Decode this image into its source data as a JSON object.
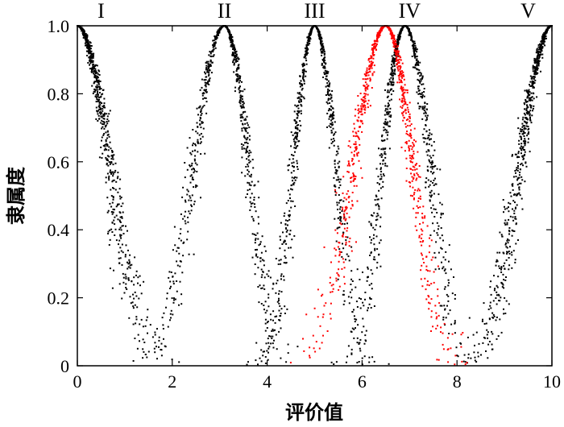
{
  "chart_data": {
    "type": "scatter",
    "title": "",
    "xlabel": "评价值",
    "ylabel": "隶属度",
    "xlim": [
      0,
      10
    ],
    "ylim": [
      0,
      1
    ],
    "x_ticks": [
      "0",
      "2",
      "4",
      "6",
      "8",
      "10"
    ],
    "y_ticks": [
      "0",
      "0.2",
      "0.4",
      "0.6",
      "0.8",
      "1.0"
    ],
    "grid": false,
    "grade_labels": [
      {
        "text": "I",
        "x": 0.5
      },
      {
        "text": "II",
        "x": 3.1
      },
      {
        "text": "III",
        "x": 5.0
      },
      {
        "text": "IV",
        "x": 7.0
      },
      {
        "text": "V",
        "x": 9.5
      }
    ],
    "series": [
      {
        "color": "#000000",
        "peak_x": 0.0,
        "zero_left": -1.0,
        "zero_right": 2.0,
        "values_depicted": "membership cloud drops",
        "count": 700
      },
      {
        "color": "#000000",
        "peak_x": 3.1,
        "zero_left": 1.2,
        "zero_right": 4.6,
        "count": 800
      },
      {
        "color": "#000000",
        "peak_x": 5.0,
        "zero_left": 3.7,
        "zero_right": 6.3,
        "count": 800
      },
      {
        "color": "#000000",
        "peak_x": 6.9,
        "zero_left": 5.5,
        "zero_right": 8.5,
        "count": 800
      },
      {
        "color": "#000000",
        "peak_x": 10.0,
        "zero_left": 8.0,
        "zero_right": 12.0,
        "count": 700
      },
      {
        "color": "#ff0000",
        "peak_x": 6.5,
        "zero_left": 4.5,
        "zero_right": 8.2,
        "count": 900
      }
    ]
  }
}
